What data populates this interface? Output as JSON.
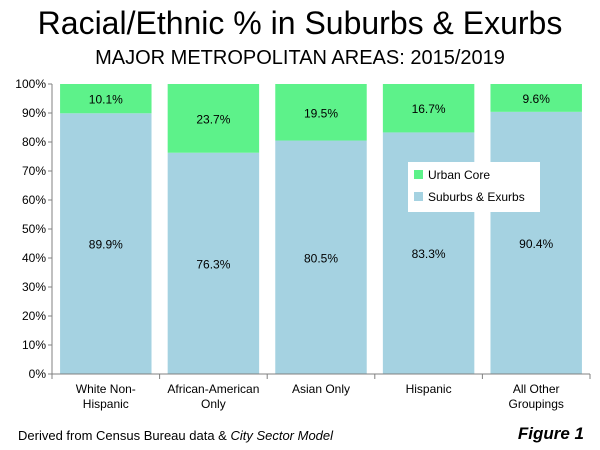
{
  "chart_data": {
    "type": "bar",
    "stacked": true,
    "title": "Racial/Ethnic % in Suburbs & Exurbs",
    "subtitle": "MAJOR METROPOLITAN AREAS: 2015/2019",
    "categories": [
      [
        "White Non-",
        "Hispanic"
      ],
      [
        "African-American",
        "Only"
      ],
      [
        "Asian Only"
      ],
      [
        "Hispanic"
      ],
      [
        "All Other",
        "Groupings"
      ]
    ],
    "series": [
      {
        "name": "Suburbs & Exurbs",
        "color": "#a5d2e1",
        "values": [
          89.9,
          76.3,
          80.5,
          83.3,
          90.4
        ],
        "labels": [
          "89.9%",
          "76.3%",
          "80.5%",
          "83.3%",
          "90.4%"
        ]
      },
      {
        "name": "Urban Core",
        "color": "#5df28a",
        "values": [
          10.1,
          23.7,
          19.5,
          16.7,
          9.6
        ],
        "labels": [
          "10.1%",
          "23.7%",
          "19.5%",
          "16.7%",
          "9.6%"
        ]
      }
    ],
    "ylim": [
      0,
      100
    ],
    "yticks": [
      "0%",
      "10%",
      "20%",
      "30%",
      "40%",
      "50%",
      "60%",
      "70%",
      "80%",
      "90%",
      "100%"
    ],
    "grid": false,
    "legend": {
      "position": "inside-right",
      "entries": [
        "Urban Core",
        "Suburbs & Exurbs"
      ]
    }
  },
  "footer": {
    "source_prefix": "Derived from Census Bureau data & ",
    "source_italic": "City Sector Model",
    "figure_label": "Figure 1"
  }
}
